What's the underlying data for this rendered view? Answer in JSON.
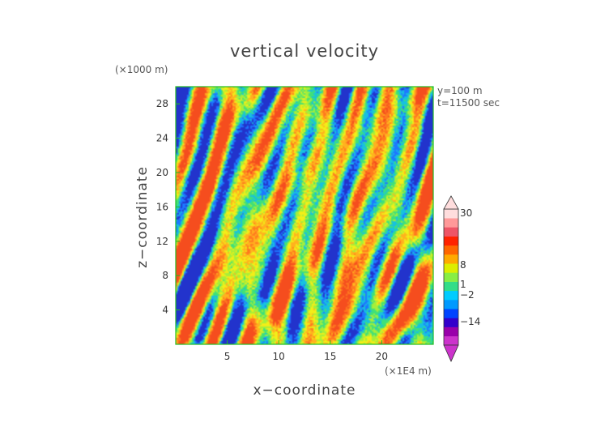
{
  "chart_data": {
    "type": "heatmap",
    "title": "vertical velocity",
    "xlabel": "x−coordinate",
    "ylabel": "z−coordinate",
    "x_unit_label": "(×1E4 m)",
    "y_unit_label": "(×1000 m)",
    "annotations": [
      "y=100 m",
      "t=11500 sec"
    ],
    "xlim": [
      0,
      25
    ],
    "ylim": [
      0,
      30
    ],
    "x_ticks": [
      5,
      10,
      15,
      20
    ],
    "y_ticks": [
      4,
      8,
      12,
      16,
      20,
      24,
      28
    ],
    "colorbar": {
      "tick_labels": [
        "30",
        "8",
        "1",
        "−2",
        "−14"
      ],
      "tick_values": [
        30,
        8,
        1,
        -2,
        -14
      ],
      "colors": [
        "#cc33cc",
        "#9900aa",
        "#3300cc",
        "#0044ff",
        "#0099ff",
        "#00ccff",
        "#33dd88",
        "#88ee44",
        "#ddee00",
        "#ffaa00",
        "#ff6600",
        "#ff2200",
        "#ee5566",
        "#ff9999",
        "#ffdddd"
      ]
    },
    "colormap": [
      "#2233cc",
      "#1d78ff",
      "#17c1e0",
      "#3fe07a",
      "#a5ef3a",
      "#f2ee18",
      "#ffb21e",
      "#ff7a1e",
      "#f54d1e"
    ]
  }
}
